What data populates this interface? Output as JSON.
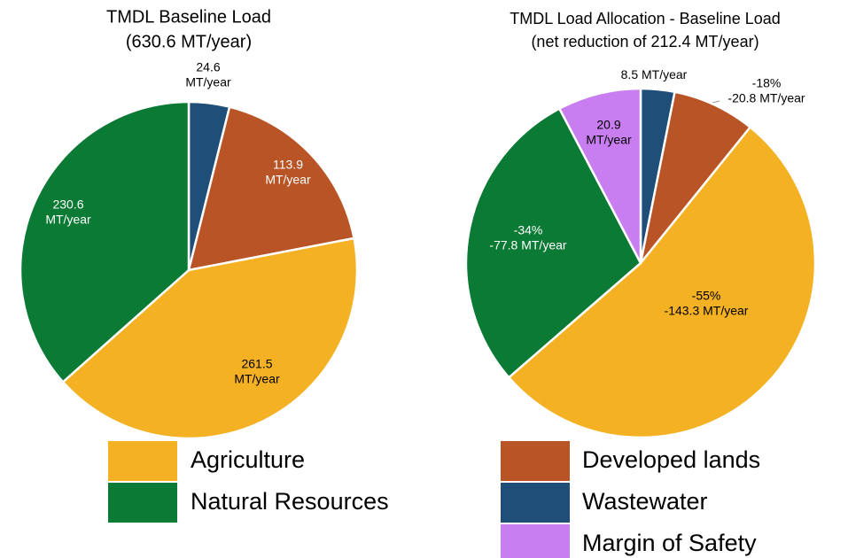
{
  "chart_data": [
    {
      "type": "pie",
      "title": "TMDL Baseline Load",
      "subtitle": "(630.6 MT/year)",
      "categories": [
        "Wastewater",
        "Developed lands",
        "Agriculture",
        "Natural Resources"
      ],
      "values": [
        24.6,
        113.9,
        261.5,
        230.6
      ],
      "value_labels": [
        [
          "24.6",
          "MT/year"
        ],
        [
          "113.9",
          "MT/year"
        ],
        [
          "261.5",
          "MT/year"
        ],
        [
          "230.6",
          "MT/year"
        ]
      ],
      "colors": [
        "#1f4e79",
        "#b85425",
        "#f4b123",
        "#0a7a35"
      ]
    },
    {
      "type": "pie",
      "title": "TMDL Load Allocation - Baseline Load",
      "subtitle": "(net reduction of 212.4 MT/year)",
      "categories": [
        "Wastewater",
        "Developed lands",
        "Agriculture",
        "Natural Resources",
        "Margin of Safety"
      ],
      "values": [
        8.5,
        -20.8,
        -143.3,
        -77.8,
        20.9
      ],
      "value_labels": [
        [
          "8.5 MT/year"
        ],
        [
          "-18%",
          "-20.8 MT/year"
        ],
        [
          "-55%",
          "-143.3 MT/year"
        ],
        [
          "-34%",
          "-77.8 MT/year"
        ],
        [
          "20.9",
          "MT/year"
        ]
      ],
      "colors": [
        "#1f4e79",
        "#b85425",
        "#f4b123",
        "#0a7a35",
        "#c87ef0"
      ]
    }
  ]
}
